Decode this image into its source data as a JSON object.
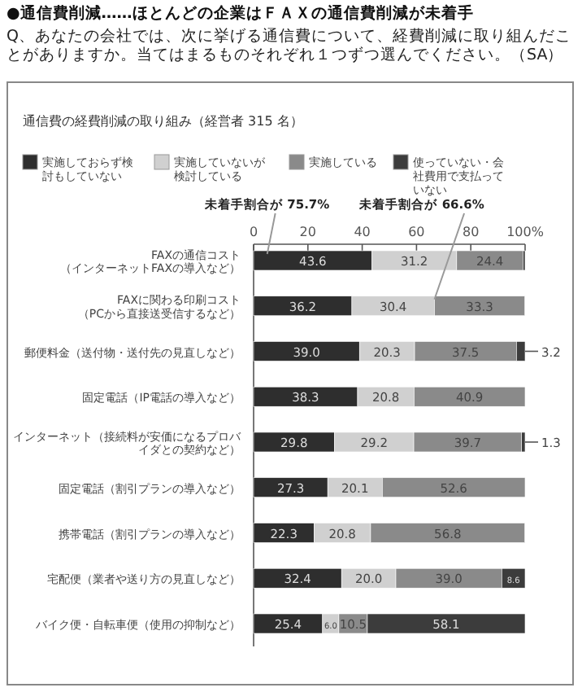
{
  "chart_data": {
    "type": "bar",
    "orientation": "horizontal",
    "stacked": true,
    "title": "●通信費削減……ほとんどの企業はＦＡＸの通信費削減が未着手",
    "subtitle": "Q、あなたの会社では、次に挙げる通信費について、経費削減に取り組んだことがありますか。当てはまるものそれぞれ１つずつ選んでください。（SA）",
    "annotations": [
      "通信費の経費削減の取り組み（経営者 315 名）",
      {
        "text": "未着手割合が 75.7%",
        "x": 5,
        "y": "FAXの通信コスト（インターネットFAXの導入など）"
      },
      {
        "text": "未着手割合が 66.6%",
        "x": 66.6,
        "y": "FAXに関わる印刷コスト（PCから直接送受信するなど）"
      }
    ],
    "categories": [
      "FAXの通信コスト（インターネットFAXの導入など）",
      "FAXに関わる印刷コスト（PCから直接送受信するなど）",
      "郵便料金（送付物・送付先の見直しなど）",
      "固定電話（IP電話の導入など）",
      "インターネット（接続料が安価になるプロバイダとの契約など）",
      "固定電話（割引プランの導入など）",
      "携帯電話（割引プランの導入など）",
      "宅配便（業者や送り方の見直しなど）",
      "バイク便・自転車便（使用の抑制など）"
    ],
    "series": [
      {
        "name": "実施しておらず検討もしていない",
        "color": "#2e2e2e",
        "values": [
          43.6,
          36.2,
          39.0,
          38.3,
          29.8,
          27.3,
          22.3,
          32.4,
          25.4
        ],
        "value_labels": [
          "43.6",
          "36.2",
          "39.0",
          "38.3",
          "29.8",
          "27.3",
          "22.3",
          "32.4",
          "25.4"
        ]
      },
      {
        "name": "実施していないが検討している",
        "color": "#d0d0d0",
        "values": [
          31.2,
          30.4,
          20.3,
          20.8,
          29.2,
          20.1,
          20.8,
          20.0,
          6.0
        ],
        "value_labels": [
          "31.2",
          "30.4",
          "20.3",
          "20.8",
          "29.2",
          "20.1",
          "20.8",
          "20.0",
          "6.0"
        ]
      },
      {
        "name": "実施している",
        "color": "#8a8a8a",
        "values": [
          24.4,
          33.3,
          37.5,
          40.9,
          39.7,
          52.6,
          56.8,
          39.0,
          10.5
        ],
        "value_labels": [
          "24.4",
          "33.3",
          "37.5",
          "40.9",
          "39.7",
          "52.6",
          "56.8",
          "39.0",
          "10.5"
        ]
      },
      {
        "name": "使っていない・会社費用で支払っていない",
        "color": "#3c3c3c",
        "values": [
          0.8,
          null,
          3.2,
          null,
          1.3,
          null,
          null,
          8.6,
          58.1
        ],
        "value_labels": [
          null,
          null,
          "3.2",
          null,
          "1.3",
          null,
          null,
          "8.6",
          "58.1"
        ]
      }
    ],
    "xlim": [
      0,
      100
    ],
    "xticks": [
      0,
      20,
      40,
      60,
      80,
      {
        "value": 100,
        "label": "100%"
      }
    ],
    "legend": "top"
  }
}
